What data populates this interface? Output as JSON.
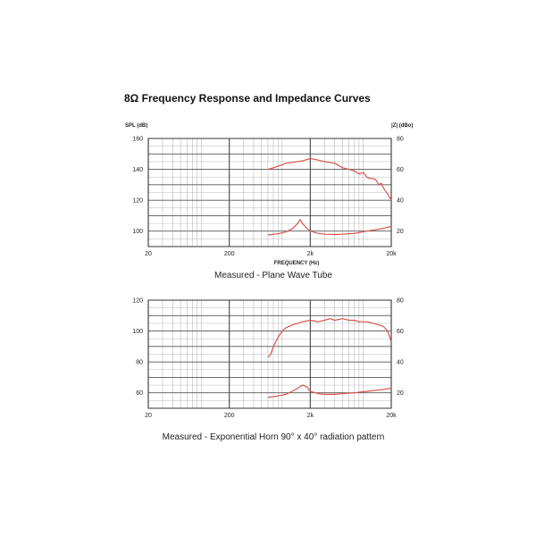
{
  "page_title": "8Ω Frequency Response and Impedance Curves",
  "chart_data": [
    {
      "type": "line",
      "caption": "Measured - Plane Wave Tube",
      "xlabel": "FREQUENCY (Hz)",
      "ylabel_left": "SPL (dB)",
      "ylabel_right": "|Z| (dBo)",
      "x_scale": "log",
      "xlim": [
        20,
        20000
      ],
      "x_ticks": [
        {
          "v": 20,
          "label": "20"
        },
        {
          "v": 200,
          "label": "200"
        },
        {
          "v": 2000,
          "label": "2k"
        },
        {
          "v": 20000,
          "label": "20k"
        }
      ],
      "ylim_left": [
        90,
        160
      ],
      "y_ticks_left": [
        100,
        120,
        140,
        160
      ],
      "ylim_right": [
        10,
        80
      ],
      "y_ticks_right": [
        20,
        40,
        60,
        80
      ],
      "grid": true,
      "series": [
        {
          "axis": "left",
          "color": "#d9534f",
          "x": [
            600,
            700,
            800,
            900,
            1000,
            1200,
            1400,
            1600,
            2000,
            2500,
            3000,
            4000,
            5000,
            6000,
            7000,
            8000,
            9000,
            10000,
            11000,
            12000,
            13000,
            14000,
            15000,
            16000,
            17000,
            18000,
            20000
          ],
          "y": [
            140,
            141,
            142,
            143,
            144,
            144.5,
            145,
            145.5,
            147,
            146,
            145,
            144,
            141,
            140,
            139,
            137,
            138,
            135,
            134,
            134,
            133,
            130,
            131,
            128,
            126,
            124,
            120
          ]
        },
        {
          "axis": "right",
          "color": "#d9534f",
          "x": [
            600,
            800,
            1000,
            1200,
            1400,
            1500,
            1600,
            1800,
            2000,
            2500,
            3000,
            4000,
            5000,
            7000,
            10000,
            15000,
            20000
          ],
          "y": [
            17.5,
            18.3,
            19.5,
            21.5,
            25,
            27.5,
            25,
            22,
            20,
            18.5,
            18,
            17.8,
            18,
            18.5,
            20,
            21.5,
            23
          ]
        }
      ]
    },
    {
      "type": "line",
      "caption": "Measured - Exponential Horn 90° x 40° radiation pattern",
      "xlabel": "",
      "x_scale": "log",
      "xlim": [
        20,
        20000
      ],
      "x_ticks": [
        {
          "v": 20,
          "label": "20"
        },
        {
          "v": 200,
          "label": "200"
        },
        {
          "v": 2000,
          "label": "2k"
        },
        {
          "v": 20000,
          "label": "20k"
        }
      ],
      "ylim_left": [
        50,
        120
      ],
      "y_ticks_left": [
        60,
        80,
        100,
        120
      ],
      "ylim_right": [
        10,
        80
      ],
      "y_ticks_right": [
        20,
        40,
        60,
        80
      ],
      "grid": true,
      "series": [
        {
          "axis": "left",
          "color": "#d9534f",
          "x": [
            600,
            650,
            700,
            800,
            900,
            1000,
            1200,
            1400,
            1600,
            2000,
            2500,
            3000,
            3500,
            4000,
            5000,
            6000,
            7000,
            8000,
            10000,
            12000,
            14000,
            16000,
            18000,
            20000
          ],
          "y": [
            83,
            85,
            90,
            96,
            100,
            102,
            104,
            105,
            106,
            107,
            106,
            107,
            108,
            107,
            108,
            107,
            107,
            106,
            106,
            105,
            104,
            103,
            100,
            93
          ]
        },
        {
          "axis": "right",
          "color": "#d9534f",
          "x": [
            600,
            800,
            1000,
            1200,
            1400,
            1600,
            1800,
            2000,
            2500,
            3000,
            4000,
            5000,
            7000,
            10000,
            15000,
            20000
          ],
          "y": [
            17,
            18,
            19,
            21,
            23,
            25,
            24,
            21,
            19.5,
            19,
            19,
            19.5,
            20,
            21,
            22,
            23
          ]
        }
      ]
    }
  ]
}
